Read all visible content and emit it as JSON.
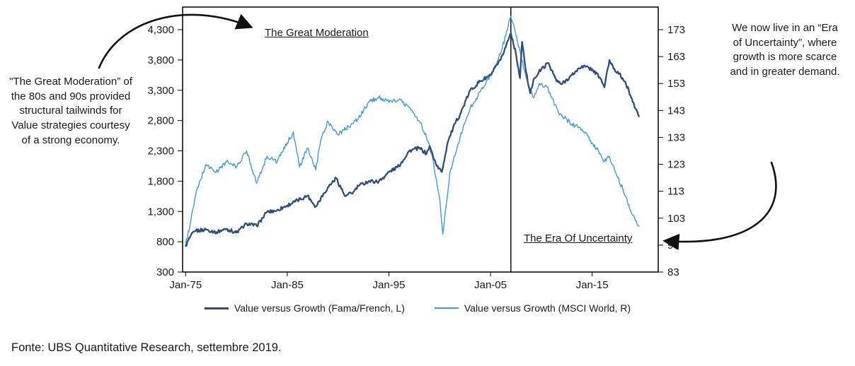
{
  "annotations": {
    "left": "\"The Great Moderation” of the 80s and 90s provided structural tailwinds for Value strategies courtesy of a strong economy.",
    "right": "We now live in an “Era of Uncertainty”, where growth is more scarce and in greater demand.",
    "great_moderation_label": "The Great Moderation",
    "era_uncertainty_label": "The Era Of Uncertainty"
  },
  "footer": "Fonte: UBS Quantitative Research, settembre 2019.",
  "chart_data": {
    "type": "line",
    "title": "",
    "xlabel": "",
    "ylabel_left": "",
    "ylabel_right": "",
    "xlim": [
      1974.7,
      2021.5
    ],
    "x_ticks": [
      "Jan-75",
      "Jan-85",
      "Jan-95",
      "Jan-05",
      "Jan-15"
    ],
    "x_tick_years": [
      1975,
      1985,
      1995,
      2005,
      2015
    ],
    "left_axis": {
      "ylim": [
        300,
        4300
      ],
      "ticks": [
        300,
        800,
        1300,
        1800,
        2300,
        2800,
        3300,
        3800,
        4300
      ]
    },
    "right_axis": {
      "ylim": [
        83,
        173
      ],
      "ticks": [
        83,
        93,
        103,
        113,
        123,
        133,
        143,
        153,
        163,
        173
      ]
    },
    "grid": false,
    "legend_position": "bottom",
    "marker_line_year": 2007,
    "series": [
      {
        "name": "Value versus Growth (Fama/French, L)",
        "axis": "left",
        "color": "#2d4d7c",
        "x": [
          1975.0,
          1975.5,
          1976,
          1977,
          1978,
          1979,
          1980,
          1981,
          1982,
          1983,
          1984,
          1985,
          1986,
          1987,
          1987.8,
          1988.3,
          1989,
          1989.8,
          1990.7,
          1991.5,
          1992,
          1993,
          1994,
          1995,
          1996,
          1997,
          1998,
          1998.7,
          1999.0,
          1999.7,
          2000.2,
          2000.8,
          2001.5,
          2002,
          2003,
          2004,
          2005,
          2006,
          2007.0,
          2007.5,
          2007.9,
          2008.1,
          2008.5,
          2008.9,
          2009.3,
          2010,
          2010.7,
          2011.5,
          2012,
          2013,
          2014,
          2015,
          2015.8,
          2016.2,
          2016.7,
          2017.2,
          2018,
          2018.6,
          2019,
          2019.6
        ],
        "values": [
          730,
          900,
          980,
          1000,
          960,
          1010,
          950,
          1100,
          1060,
          1290,
          1320,
          1400,
          1480,
          1560,
          1380,
          1520,
          1700,
          1850,
          1550,
          1620,
          1720,
          1800,
          1790,
          1950,
          2050,
          2300,
          2350,
          2250,
          2380,
          2050,
          1950,
          2450,
          2750,
          2900,
          3300,
          3450,
          3550,
          3800,
          4250,
          3900,
          3500,
          4100,
          3600,
          3250,
          3500,
          3650,
          3750,
          3450,
          3400,
          3550,
          3700,
          3650,
          3500,
          3350,
          3800,
          3650,
          3500,
          3300,
          3100,
          2870
        ]
      },
      {
        "name": "Value versus Growth (MSCI World, R)",
        "axis": "right",
        "color": "#4499d3",
        "x": [
          1975.0,
          1975.5,
          1976,
          1977,
          1978,
          1979,
          1980,
          1981,
          1982,
          1983,
          1984,
          1985,
          1985.6,
          1986.2,
          1987,
          1987.8,
          1988.3,
          1989,
          1990,
          1991,
          1992,
          1993,
          1994,
          1995,
          1996,
          1997,
          1998,
          1998.7,
          1999.2,
          2000.0,
          2000.3,
          2001,
          2002,
          2003,
          2004,
          2005,
          2006,
          2007.0,
          2007.5,
          2008,
          2008.8,
          2009.3,
          2009.8,
          2010.5,
          2011,
          2011.7,
          2012,
          2013,
          2014,
          2015,
          2015.8,
          2016.2,
          2016.7,
          2017.2,
          2018,
          2018.6,
          2019,
          2019.6
        ],
        "values": [
          93,
          102,
          112,
          123,
          120,
          124,
          122,
          128,
          116,
          126,
          124,
          131,
          135,
          122,
          129,
          121,
          132,
          139,
          134,
          137,
          140,
          146,
          148,
          146,
          147,
          144,
          139,
          133,
          127,
          110,
          97,
          120,
          133,
          144,
          150,
          156,
          164,
          178,
          171,
          163,
          151,
          148,
          153,
          152,
          148,
          142,
          141,
          138,
          136,
          131,
          127,
          124,
          126,
          121,
          114,
          108,
          104,
          100
        ]
      }
    ]
  }
}
